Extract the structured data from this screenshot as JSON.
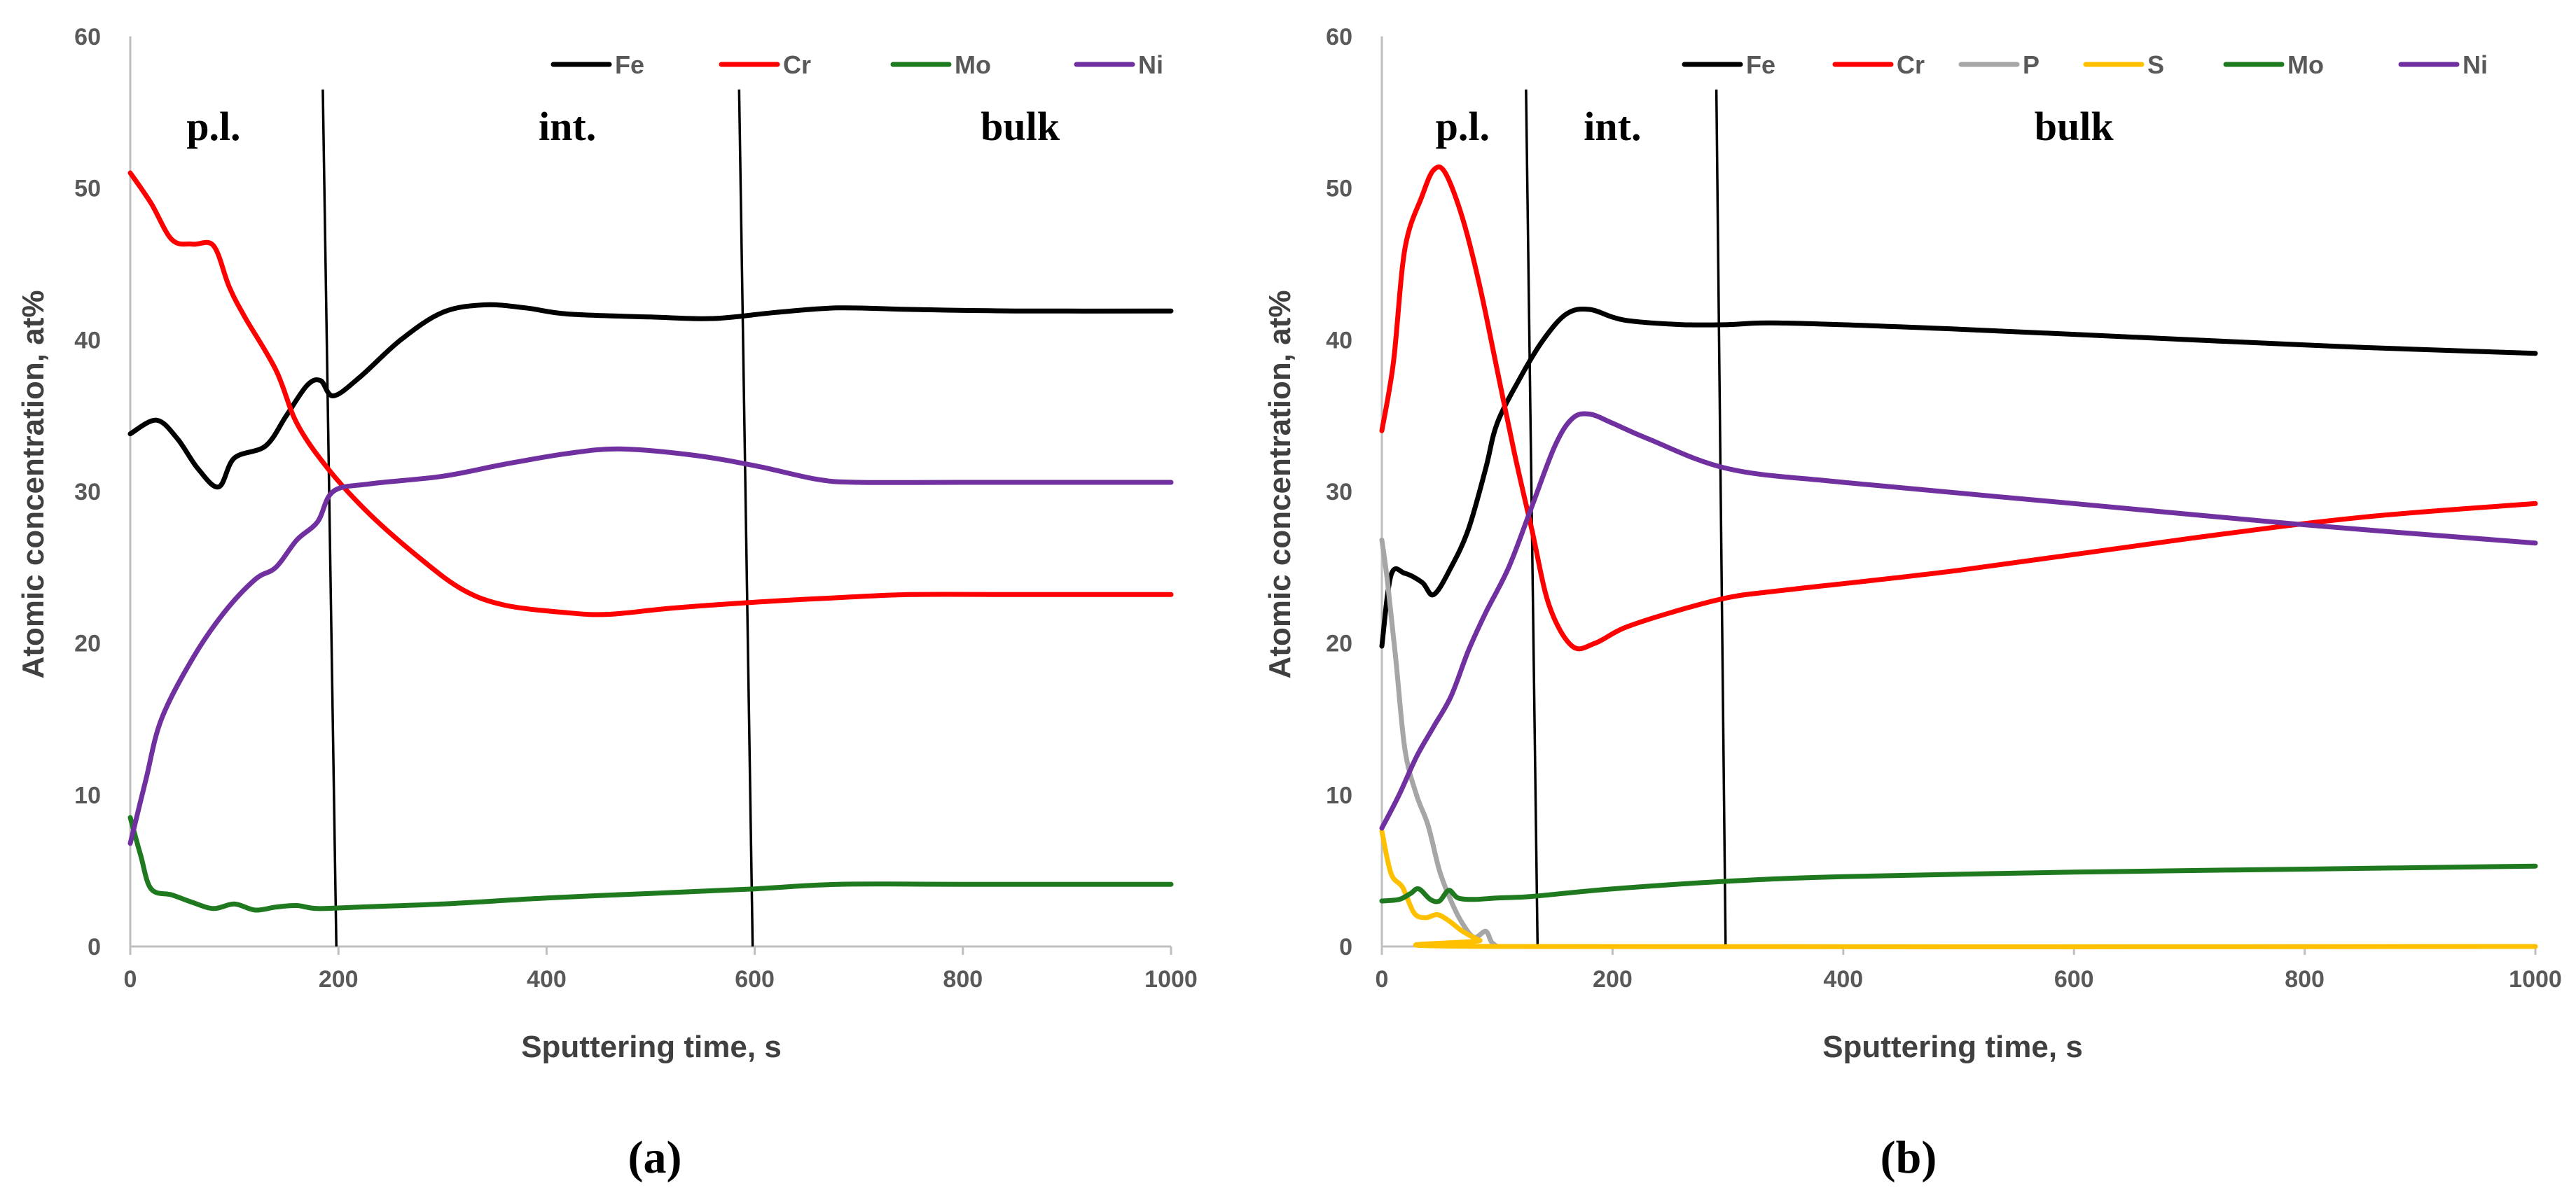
{
  "chart_data": [
    {
      "panel_label": "(a)",
      "type": "line",
      "xlabel": "Sputtering time, s",
      "ylabel": "Atomic concentration, at%",
      "xlim": [
        0,
        1000
      ],
      "ylim": [
        0,
        60
      ],
      "xticks": [
        0,
        200,
        400,
        600,
        800,
        1000
      ],
      "yticks": [
        0,
        10,
        20,
        30,
        40,
        50,
        60
      ],
      "grid": false,
      "legend_position": "top-right",
      "region_labels": [
        {
          "text": "p.l.",
          "x": 80
        },
        {
          "text": "int.",
          "x": 420
        },
        {
          "text": "bulk",
          "x": 855
        }
      ],
      "boundaries": [
        {
          "x_top": 185,
          "x_bottom": 198
        },
        {
          "x_top": 585,
          "x_bottom": 598
        }
      ],
      "series": [
        {
          "name": "Fe",
          "color": "#000000",
          "points": [
            [
              0,
              33.8
            ],
            [
              25,
              34.7
            ],
            [
              45,
              33.5
            ],
            [
              65,
              31.5
            ],
            [
              85,
              30.3
            ],
            [
              100,
              32.2
            ],
            [
              130,
              33
            ],
            [
              150,
              35
            ],
            [
              170,
              37
            ],
            [
              183,
              37.3
            ],
            [
              195,
              36.3
            ],
            [
              220,
              37.5
            ],
            [
              260,
              40
            ],
            [
              300,
              41.8
            ],
            [
              340,
              42.3
            ],
            [
              380,
              42.1
            ],
            [
              420,
              41.7
            ],
            [
              500,
              41.5
            ],
            [
              560,
              41.4
            ],
            [
              620,
              41.8
            ],
            [
              680,
              42.1
            ],
            [
              750,
              42
            ],
            [
              850,
              41.9
            ],
            [
              1000,
              41.9
            ]
          ]
        },
        {
          "name": "Cr",
          "color": "#ff0000",
          "points": [
            [
              0,
              51
            ],
            [
              20,
              49
            ],
            [
              40,
              46.6
            ],
            [
              60,
              46.3
            ],
            [
              80,
              46.2
            ],
            [
              95,
              43.5
            ],
            [
              110,
              41.5
            ],
            [
              140,
              38
            ],
            [
              160,
              34.5
            ],
            [
              190,
              31.5
            ],
            [
              230,
              28.5
            ],
            [
              280,
              25.5
            ],
            [
              320,
              23.5
            ],
            [
              360,
              22.5
            ],
            [
              420,
              22
            ],
            [
              460,
              21.9
            ],
            [
              520,
              22.3
            ],
            [
              600,
              22.7
            ],
            [
              680,
              23
            ],
            [
              750,
              23.2
            ],
            [
              850,
              23.2
            ],
            [
              1000,
              23.2
            ]
          ]
        },
        {
          "name": "Mo",
          "color": "#1f7a1f",
          "points": [
            [
              0,
              8.5
            ],
            [
              10,
              6
            ],
            [
              20,
              3.8
            ],
            [
              40,
              3.4
            ],
            [
              60,
              2.9
            ],
            [
              80,
              2.5
            ],
            [
              100,
              2.8
            ],
            [
              120,
              2.4
            ],
            [
              140,
              2.6
            ],
            [
              160,
              2.7
            ],
            [
              180,
              2.5
            ],
            [
              220,
              2.6
            ],
            [
              300,
              2.8
            ],
            [
              400,
              3.2
            ],
            [
              500,
              3.5
            ],
            [
              600,
              3.8
            ],
            [
              680,
              4.1
            ],
            [
              800,
              4.1
            ],
            [
              1000,
              4.1
            ]
          ]
        },
        {
          "name": "Ni",
          "color": "#7030a0",
          "points": [
            [
              0,
              6.8
            ],
            [
              15,
              11
            ],
            [
              30,
              15
            ],
            [
              60,
              19
            ],
            [
              90,
              22
            ],
            [
              120,
              24.2
            ],
            [
              140,
              25
            ],
            [
              160,
              26.8
            ],
            [
              180,
              28
            ],
            [
              195,
              30
            ],
            [
              230,
              30.5
            ],
            [
              300,
              31
            ],
            [
              360,
              31.8
            ],
            [
              420,
              32.5
            ],
            [
              470,
              32.8
            ],
            [
              540,
              32.4
            ],
            [
              600,
              31.7
            ],
            [
              660,
              30.8
            ],
            [
              700,
              30.6
            ],
            [
              800,
              30.6
            ],
            [
              1000,
              30.6
            ]
          ]
        }
      ]
    },
    {
      "panel_label": "(b)",
      "type": "line",
      "xlabel": "Sputtering time, s",
      "ylabel": "Atomic concentration, at%",
      "xlim": [
        0,
        1000
      ],
      "ylim": [
        0,
        60
      ],
      "xticks": [
        0,
        200,
        400,
        600,
        800,
        1000
      ],
      "yticks": [
        0,
        10,
        20,
        30,
        40,
        50,
        60
      ],
      "grid": false,
      "legend_position": "top-right",
      "region_labels": [
        {
          "text": "p.l.",
          "x": 70
        },
        {
          "text": "int.",
          "x": 200
        },
        {
          "text": "bulk",
          "x": 600
        }
      ],
      "boundaries": [
        {
          "x_top": 125,
          "x_bottom": 135
        },
        {
          "x_top": 290,
          "x_bottom": 298
        }
      ],
      "series": [
        {
          "name": "Fe",
          "color": "#000000",
          "points": [
            [
              0,
              19.8
            ],
            [
              8,
              24.5
            ],
            [
              20,
              24.6
            ],
            [
              35,
              24
            ],
            [
              45,
              23.2
            ],
            [
              60,
              25
            ],
            [
              75,
              27.5
            ],
            [
              90,
              31.5
            ],
            [
              100,
              34.5
            ],
            [
              120,
              37.5
            ],
            [
              140,
              40
            ],
            [
              160,
              41.7
            ],
            [
              180,
              42
            ],
            [
              210,
              41.3
            ],
            [
              260,
              41
            ],
            [
              300,
              41
            ],
            [
              350,
              41.1
            ],
            [
              500,
              40.7
            ],
            [
              700,
              40
            ],
            [
              850,
              39.5
            ],
            [
              1000,
              39.1
            ]
          ]
        },
        {
          "name": "Cr",
          "color": "#ff0000",
          "points": [
            [
              0,
              34
            ],
            [
              10,
              38.5
            ],
            [
              20,
              46
            ],
            [
              35,
              49.5
            ],
            [
              45,
              51.2
            ],
            [
              55,
              51
            ],
            [
              70,
              48
            ],
            [
              85,
              43.5
            ],
            [
              100,
              38
            ],
            [
              115,
              32.5
            ],
            [
              130,
              27.5
            ],
            [
              145,
              22.5
            ],
            [
              165,
              19.8
            ],
            [
              185,
              20
            ],
            [
              210,
              21
            ],
            [
              250,
              22
            ],
            [
              300,
              23
            ],
            [
              350,
              23.5
            ],
            [
              500,
              24.8
            ],
            [
              700,
              26.9
            ],
            [
              850,
              28.3
            ],
            [
              1000,
              29.2
            ]
          ]
        },
        {
          "name": "P",
          "color": "#a6a6a6",
          "points": [
            [
              0,
              26.8
            ],
            [
              5,
              24
            ],
            [
              12,
              19
            ],
            [
              20,
              13
            ],
            [
              30,
              10
            ],
            [
              40,
              8
            ],
            [
              50,
              5
            ],
            [
              60,
              3
            ],
            [
              70,
              1.5
            ],
            [
              80,
              0.6
            ],
            [
              90,
              1
            ],
            [
              95,
              0.3
            ],
            [
              100,
              0
            ]
          ]
        },
        {
          "name": "S",
          "color": "#ffc000",
          "points": [
            [
              0,
              7.6
            ],
            [
              8,
              4.8
            ],
            [
              18,
              3.9
            ],
            [
              28,
              2.2
            ],
            [
              38,
              1.9
            ],
            [
              48,
              2.1
            ],
            [
              58,
              1.7
            ],
            [
              70,
              1
            ],
            [
              85,
              0.4
            ],
            [
              100,
              0
            ],
            [
              1000,
              0
            ]
          ]
        },
        {
          "name": "Mo",
          "color": "#1f7a1f",
          "points": [
            [
              0,
              3
            ],
            [
              15,
              3.1
            ],
            [
              25,
              3.5
            ],
            [
              32,
              3.8
            ],
            [
              42,
              3.1
            ],
            [
              50,
              3
            ],
            [
              58,
              3.7
            ],
            [
              66,
              3.2
            ],
            [
              80,
              3.1
            ],
            [
              100,
              3.2
            ],
            [
              130,
              3.3
            ],
            [
              200,
              3.8
            ],
            [
              300,
              4.3
            ],
            [
              400,
              4.6
            ],
            [
              600,
              4.9
            ],
            [
              800,
              5.1
            ],
            [
              1000,
              5.3
            ]
          ]
        },
        {
          "name": "Ni",
          "color": "#7030a0",
          "points": [
            [
              0,
              7.8
            ],
            [
              15,
              10
            ],
            [
              30,
              12.5
            ],
            [
              45,
              14.5
            ],
            [
              60,
              16.5
            ],
            [
              75,
              19.5
            ],
            [
              90,
              22
            ],
            [
              110,
              25
            ],
            [
              130,
              29
            ],
            [
              150,
              33
            ],
            [
              165,
              34.8
            ],
            [
              180,
              35.1
            ],
            [
              200,
              34.5
            ],
            [
              230,
              33.5
            ],
            [
              300,
              31.5
            ],
            [
              400,
              30.6
            ],
            [
              600,
              29.2
            ],
            [
              800,
              27.8
            ],
            [
              1000,
              26.6
            ]
          ]
        }
      ]
    }
  ]
}
